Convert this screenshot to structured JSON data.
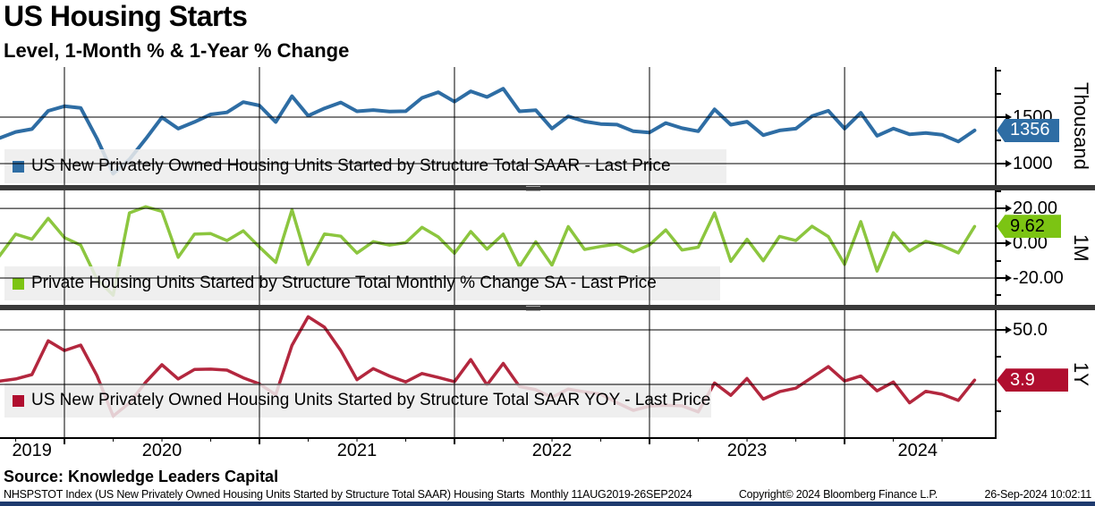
{
  "header": {
    "title": "US Housing Starts",
    "subtitle": "Level, 1-Month % & 1-Year % Change"
  },
  "source_line": "Source: Knowledge Leaders Capital",
  "footer": {
    "security_info": "NHSPSTOT Index (US New Privately Owned Housing Units Started by Structure Total SAAR) Housing Starts  Monthly 11AUG2019-26SEP2024",
    "copyright": "Copyright© 2024 Bloomberg Finance L.P.",
    "timestamp": "26-Sep-2024 10:02:11"
  },
  "colors": {
    "level_line": "#2E6DA4",
    "level_badge": "#2E6DA4",
    "monthly_line": "#8CC63F",
    "monthly_badge": "#7CC413",
    "yoy_line": "#B3273E",
    "yoy_badge": "#B00E2F",
    "gridline": "#000000",
    "legend_bg": "#ECECEC",
    "separator": "#3A3A3A",
    "bottom_strip": "#1E3A6E"
  },
  "x_axis": {
    "start": "Aug 2019",
    "end": "Sep 2024",
    "frequency": "monthly",
    "year_line_indices": [
      5,
      17,
      29,
      41,
      53
    ],
    "year_labels": [
      {
        "label": "2019",
        "i": 3.0
      },
      {
        "label": "2020",
        "i": 11
      },
      {
        "label": "2021",
        "i": 23
      },
      {
        "label": "2022",
        "i": 35
      },
      {
        "label": "2023",
        "i": 47
      },
      {
        "label": "2024",
        "i": 57.5
      }
    ]
  },
  "chart_data": [
    {
      "type": "line",
      "name": "level",
      "legend": "US New Privately Owned Housing Units Started by Structure Total SAAR - Last Price",
      "ylabel_right": "Thousand",
      "ylim": [
        769,
        2038
      ],
      "gridline_values": [
        1500,
        1000
      ],
      "tick_labels": [
        {
          "v": 1500,
          "label": "1500"
        },
        {
          "v": 1000,
          "label": "1000"
        }
      ],
      "minor_ticks": [
        2000,
        1750,
        1250
      ],
      "badge": {
        "label": "1356",
        "text_color": "#ffffff"
      },
      "last_value": 1356,
      "values": [
        1375,
        1274,
        1340,
        1371,
        1567,
        1617,
        1599,
        1269,
        891,
        1046,
        1265,
        1497,
        1376,
        1448,
        1528,
        1551,
        1661,
        1625,
        1447,
        1725,
        1514,
        1594,
        1657,
        1562,
        1576,
        1559,
        1563,
        1706,
        1768,
        1666,
        1777,
        1716,
        1805,
        1562,
        1575,
        1377,
        1508,
        1453,
        1426,
        1419,
        1348,
        1334,
        1436,
        1380,
        1348,
        1583,
        1418,
        1451,
        1305,
        1356,
        1376,
        1510,
        1568,
        1376,
        1546,
        1299,
        1377,
        1315,
        1329,
        1310,
        1237,
        1356
      ]
    },
    {
      "type": "line",
      "name": "monthly-pct",
      "legend": "Private Housing Units Started by Structure Total Monthly % Change SA - Last Price",
      "ylabel_right": "1M",
      "ylim": [
        -35.4,
        30.3
      ],
      "gridline_values": [
        20,
        0,
        -20
      ],
      "tick_labels": [
        {
          "v": 20,
          "label": "20.00"
        },
        {
          "v": 0,
          "label": "0.00"
        },
        {
          "v": -20,
          "label": "-20.00"
        }
      ],
      "minor_ticks": [
        30,
        10,
        -10,
        -30
      ],
      "badge": {
        "label": "9.62",
        "text_color": "#000000"
      },
      "last_value": 9.62,
      "values": [
        -1.5,
        -7.3,
        5.2,
        2.3,
        14.3,
        3.2,
        -1.1,
        -20.6,
        -29.8,
        17.4,
        20.9,
        18.3,
        -8.1,
        5.2,
        5.5,
        1.5,
        7.1,
        -2.2,
        -11.0,
        19.2,
        -12.2,
        5.3,
        4.0,
        -5.7,
        0.9,
        -1.1,
        0.3,
        9.1,
        3.6,
        -5.8,
        6.7,
        -3.4,
        5.2,
        -13.5,
        0.8,
        -12.6,
        9.5,
        -3.6,
        -1.9,
        -0.5,
        -5.0,
        -1.0,
        7.6,
        -3.9,
        -2.3,
        17.4,
        -10.4,
        2.3,
        -10.1,
        3.9,
        1.5,
        9.7,
        3.8,
        -12.2,
        12.4,
        -16.0,
        6.0,
        -4.5,
        1.1,
        -1.4,
        -5.6,
        9.62
      ]
    },
    {
      "type": "line",
      "name": "yoy-pct",
      "legend": "US New Privately Owned Housing Units Started by Structure Total SAAR YOY - Last Price",
      "ylabel_right": "1Y",
      "ylim": [
        -49.2,
        68.0
      ],
      "gridline_values": [
        50,
        0
      ],
      "tick_labels": [
        {
          "v": 50,
          "label": "50.0"
        }
      ],
      "minor_ticks": [
        25,
        -25
      ],
      "badge": {
        "label": "3.9",
        "text_color": "#ffffff"
      },
      "last_value": 3.9,
      "values": [
        5,
        3,
        5,
        9,
        40,
        31,
        36,
        8,
        -29,
        -17,
        2,
        18,
        5,
        13.7,
        14.0,
        13.1,
        6.0,
        0.5,
        -9.5,
        35.9,
        62,
        52.4,
        31.0,
        4.3,
        14.5,
        7.7,
        2.3,
        10.0,
        6.4,
        2.5,
        22.8,
        -0.5,
        19.2,
        -2.0,
        -4.9,
        -11.8,
        -4.3,
        -6.8,
        -8.8,
        -16.8,
        -23.8,
        -19.9,
        -19.2,
        -19.6,
        -25.3,
        1.3,
        -10.0,
        5.4,
        -13.5,
        -6.7,
        -3.5,
        6.4,
        16.3,
        3.1,
        7.7,
        -5.9,
        2.2,
        -16.9,
        -6.3,
        -9.0,
        -14.7,
        3.9
      ]
    }
  ]
}
